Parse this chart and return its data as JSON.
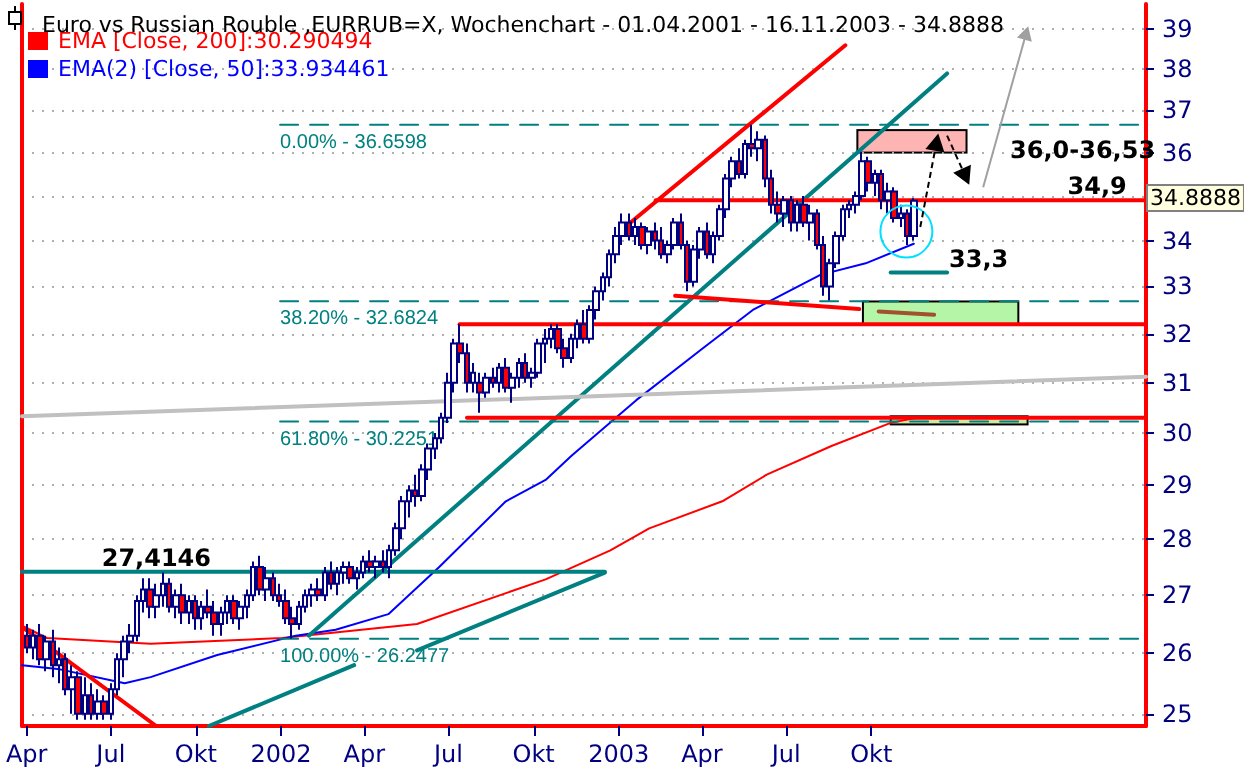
{
  "chart_data": {
    "type": "candlestick",
    "title": "Euro vs Russian Rouble ,EURRUB=X, Wochenchart - 01.04.2001 - 16.11.2003 - 34.8888",
    "log": true,
    "grid": "y",
    "legend": "top left",
    "marker": "none",
    "xlim": [
      "2001-03-27",
      "2004-07-24"
    ],
    "xticks": [
      {
        "value": "2001-04-01",
        "label": "Apr"
      },
      {
        "value": "2001-07-01",
        "label": "Jul"
      },
      {
        "value": "2001-10-01",
        "label": "Okt"
      },
      {
        "value": "2002-01-01",
        "label": "2002"
      },
      {
        "value": "2002-04-01",
        "label": "Apr"
      },
      {
        "value": "2002-07-01",
        "label": "Jul"
      },
      {
        "value": "2002-10-01",
        "label": "Okt"
      },
      {
        "value": "2003-01-01",
        "label": "2003"
      },
      {
        "value": "2003-04-01",
        "label": "Apr"
      },
      {
        "value": "2003-07-01",
        "label": "Jul"
      },
      {
        "value": "2003-10-01",
        "label": "Okt"
      }
    ],
    "ylim": [
      24.8,
      39.65
    ],
    "yticks": [
      25,
      26,
      27,
      28,
      29,
      30,
      31,
      32,
      33,
      34,
      {
        "value": 35,
        "label": null
      },
      36,
      37,
      38,
      39
    ],
    "annotations": [
      {
        "text": "27,4146",
        "x": "2001-06-19",
        "y": 27.4146
      },
      "36,0-36,53",
      {
        "text": "34,9",
        "x": "2004-04-28",
        "y": 34.9
      },
      {
        "text": "33,3",
        "x": "2003-12-22",
        "y": 33.3
      },
      "34.8888"
    ],
    "series": [
      {
        "type": "line",
        "name": "EMA [Close, 200]:30.290494",
        "color": "#ff0000",
        "x": [
          "2001-03-27",
          "2001-04-23",
          "2001-08-13",
          "2002-01-02",
          "2002-05-28",
          "2002-10-14",
          "2002-12-23",
          "2003-02-03",
          "2003-04-23",
          "2003-06-10",
          "2003-08-19",
          "2003-10-22",
          "2003-11-16"
        ],
        "values": [
          26.47,
          26.26,
          26.16,
          26.26,
          26.5,
          27.28,
          27.8,
          28.2,
          28.7,
          29.2,
          29.75,
          30.2,
          30.29
        ]
      },
      {
        "type": "line",
        "name": "EMA(2) [Close, 50]:33.934461",
        "color": "#0000ff",
        "x": [
          "2001-03-27",
          "2001-05-07",
          "2001-07-16",
          "2001-08-13",
          "2001-10-24",
          "2002-01-17",
          "2002-03-01",
          "2002-04-27",
          "2002-06-21",
          "2002-09-01",
          "2002-10-14",
          "2002-11-11",
          "2003-01-20",
          "2003-04-02",
          "2003-05-26",
          "2003-08-07",
          "2003-09-25",
          "2003-11-16"
        ],
        "values": [
          25.8,
          25.73,
          25.5,
          25.6,
          25.97,
          26.3,
          26.4,
          26.67,
          27.5,
          28.7,
          29.1,
          29.56,
          30.65,
          31.7,
          32.5,
          33.25,
          33.5,
          33.93
        ]
      },
      {
        "type": "line",
        "name": "0.00% - 36.6598",
        "color": "#008080",
        "line_style": "dashed",
        "x": [
          "2001-12-31",
          "2004-07-24"
        ],
        "values": [
          36.6598,
          36.6598
        ]
      },
      {
        "type": "line",
        "name": "38.20% - 32.6824",
        "color": "#008080",
        "line_style": "dashed",
        "x": [
          "2001-12-31",
          "2004-07-24"
        ],
        "values": [
          32.6824,
          32.6824
        ]
      },
      {
        "type": "line",
        "name": "61.80% - 30.2251",
        "color": "#008080",
        "line_style": "dashed",
        "x": [
          "2001-12-31",
          "2004-07-24"
        ],
        "values": [
          30.2251,
          30.2251
        ]
      },
      {
        "type": "line",
        "name": "100.00% - 26.2477",
        "color": "#008080",
        "line_style": "dashed",
        "x": [
          "2001-12-31",
          "2004-07-24"
        ],
        "values": [
          26.2477,
          26.2477
        ]
      },
      {
        "type": "line",
        "color": "#ff0000",
        "x": [
          "2001-03-27",
          "2001-08-19"
        ],
        "values": [
          26.45,
          24.8
        ]
      },
      {
        "type": "line",
        "color": "#008080",
        "x": [
          "2001-03-27",
          "2002-12-17"
        ],
        "values": [
          27.4146,
          27.4146
        ]
      },
      {
        "type": "line",
        "color": "#008080",
        "x": [
          "2002-05-28",
          "2002-12-17"
        ],
        "values": [
          26.05,
          27.4
        ]
      },
      {
        "type": "line",
        "color": "#008080",
        "x": [
          "2001-10-15",
          "2002-03-21"
        ],
        "values": [
          24.8,
          25.8
        ]
      },
      {
        "type": "line",
        "color": "#008080",
        "x": [
          "2002-01-31",
          "2003-12-22"
        ],
        "values": [
          26.3,
          37.9
        ]
      },
      {
        "type": "line",
        "color": "#c0c0c0",
        "x": [
          "2001-03-27",
          "2004-07-24"
        ],
        "values": [
          30.33,
          31.12
        ]
      },
      {
        "type": "line",
        "color": "#ff0000",
        "x": [
          "2003-01-08",
          "2003-09-03"
        ],
        "values": [
          34.3,
          38.6
        ]
      },
      {
        "type": "line",
        "color": "#ff0000",
        "x": [
          "2003-03-03",
          "2003-09-18"
        ],
        "values": [
          32.8,
          32.52
        ]
      },
      {
        "type": "line",
        "color": "#a0522d",
        "x": [
          "2003-10-09",
          "2003-12-08"
        ],
        "values": [
          32.47,
          32.4
        ]
      },
      {
        "type": "line",
        "color": "#ff0000",
        "x": [
          "2003-02-10",
          "2004-07-24"
        ],
        "values": [
          34.9,
          34.9
        ]
      },
      {
        "type": "line",
        "color": "#ff0000",
        "x": [
          "2002-07-13",
          "2004-07-24"
        ],
        "values": [
          32.2,
          32.2
        ]
      },
      {
        "type": "line",
        "color": "#ff0000",
        "x": [
          "2002-07-21",
          "2004-07-24"
        ],
        "values": [
          30.3,
          30.3
        ]
      },
      {
        "type": "line",
        "color": "#008080",
        "x": [
          "2003-10-22",
          "2003-12-22"
        ],
        "values": [
          33.3,
          33.3
        ]
      },
      {
        "color": "#000080",
        "x": [
          "2001-04-01",
          "2001-04-08",
          "2001-04-15",
          "2001-04-22",
          "2001-04-29",
          "2001-05-06",
          "2001-05-13",
          "2001-05-20",
          "2001-05-27",
          "2001-06-03",
          "2001-06-10",
          "2001-06-17",
          "2001-06-24",
          "2001-07-01",
          "2001-07-08",
          "2001-07-15",
          "2001-07-22",
          "2001-07-29",
          "2001-08-05",
          "2001-08-12",
          "2001-08-19",
          "2001-08-26",
          "2001-09-02",
          "2001-09-09",
          "2001-09-16",
          "2001-09-23",
          "2001-09-30",
          "2001-10-07",
          "2001-10-14",
          "2001-10-21",
          "2001-10-28",
          "2001-11-04",
          "2001-11-11",
          "2001-11-18",
          "2001-11-25",
          "2001-12-02",
          "2001-12-09",
          "2001-12-16",
          "2001-12-23",
          "2001-12-30",
          "2002-01-06",
          "2002-01-13",
          "2002-01-20",
          "2002-01-27",
          "2002-02-03",
          "2002-02-10",
          "2002-02-17",
          "2002-02-24",
          "2002-03-03",
          "2002-03-10",
          "2002-03-17",
          "2002-03-24",
          "2002-03-31",
          "2002-04-07",
          "2002-04-14",
          "2002-04-21",
          "2002-04-28",
          "2002-05-05",
          "2002-05-12",
          "2002-05-19",
          "2002-05-26",
          "2002-06-02",
          "2002-06-09",
          "2002-06-16",
          "2002-06-23",
          "2002-06-30",
          "2002-07-07",
          "2002-07-14",
          "2002-07-21",
          "2002-07-28",
          "2002-08-04",
          "2002-08-11",
          "2002-08-18",
          "2002-08-25",
          "2002-09-01",
          "2002-09-08",
          "2002-09-15",
          "2002-09-22",
          "2002-09-29",
          "2002-10-06",
          "2002-10-13",
          "2002-10-20",
          "2002-10-27",
          "2002-11-03",
          "2002-11-10",
          "2002-11-17",
          "2002-11-24",
          "2002-12-01",
          "2002-12-08",
          "2002-12-15",
          "2002-12-22",
          "2002-12-29",
          "2003-01-05",
          "2003-01-12",
          "2003-01-19",
          "2003-01-26",
          "2003-02-02",
          "2003-02-09",
          "2003-02-16",
          "2003-02-23",
          "2003-03-02",
          "2003-03-09",
          "2003-03-16",
          "2003-03-23",
          "2003-03-30",
          "2003-04-06",
          "2003-04-13",
          "2003-04-20",
          "2003-04-27",
          "2003-05-04",
          "2003-05-11",
          "2003-05-18",
          "2003-05-25",
          "2003-06-01",
          "2003-06-08",
          "2003-06-15",
          "2003-06-22",
          "2003-06-29",
          "2003-07-06",
          "2003-07-13",
          "2003-07-20",
          "2003-07-27",
          "2003-08-03",
          "2003-08-10",
          "2003-08-17",
          "2003-08-24",
          "2003-08-31",
          "2003-09-07",
          "2003-09-14",
          "2003-09-21",
          "2003-09-28",
          "2003-10-05",
          "2003-10-12",
          "2003-10-19",
          "2003-10-26",
          "2003-11-02",
          "2003-11-09",
          "2003-11-16"
        ],
        "ohlc": [
          [
            26.3,
            26.5,
            26.0,
            26.1
          ],
          [
            26.1,
            26.4,
            25.9,
            26.3
          ],
          [
            26.3,
            26.5,
            25.8,
            25.9
          ],
          [
            25.9,
            26.3,
            25.7,
            26.2
          ],
          [
            26.2,
            26.4,
            25.6,
            25.8
          ],
          [
            25.8,
            26.1,
            25.5,
            25.9
          ],
          [
            25.9,
            26.0,
            25.3,
            25.4
          ],
          [
            25.4,
            25.8,
            25.0,
            25.6
          ],
          [
            25.6,
            25.7,
            24.9,
            25.0
          ],
          [
            25.0,
            25.6,
            24.9,
            25.3
          ],
          [
            25.3,
            25.5,
            24.9,
            25.0
          ],
          [
            25.0,
            25.4,
            24.9,
            25.2
          ],
          [
            25.2,
            25.3,
            24.9,
            25.0
          ],
          [
            25.0,
            25.5,
            24.9,
            25.4
          ],
          [
            25.4,
            26.0,
            25.3,
            25.9
          ],
          [
            25.9,
            26.3,
            25.6,
            26.2
          ],
          [
            26.2,
            26.5,
            26.0,
            26.3
          ],
          [
            26.3,
            27.0,
            26.2,
            26.9
          ],
          [
            26.9,
            27.3,
            26.7,
            27.1
          ],
          [
            27.1,
            27.3,
            26.6,
            26.8
          ],
          [
            26.8,
            27.2,
            26.6,
            27.0
          ],
          [
            27.0,
            27.4,
            26.8,
            27.2
          ],
          [
            27.2,
            27.3,
            26.7,
            26.8
          ],
          [
            26.8,
            27.1,
            26.6,
            27.0
          ],
          [
            27.0,
            27.2,
            26.5,
            26.7
          ],
          [
            26.7,
            27.0,
            26.5,
            26.9
          ],
          [
            26.9,
            27.0,
            26.4,
            26.6
          ],
          [
            26.6,
            26.9,
            26.4,
            26.8
          ],
          [
            26.8,
            27.1,
            26.6,
            26.7
          ],
          [
            26.7,
            26.9,
            26.3,
            26.5
          ],
          [
            26.5,
            26.8,
            26.3,
            26.7
          ],
          [
            26.7,
            27.0,
            26.5,
            26.9
          ],
          [
            26.9,
            27.0,
            26.5,
            26.6
          ],
          [
            26.6,
            26.9,
            26.4,
            26.8
          ],
          [
            26.8,
            27.1,
            26.6,
            27.0
          ],
          [
            27.0,
            27.6,
            26.9,
            27.5
          ],
          [
            27.5,
            27.7,
            27.0,
            27.1
          ],
          [
            27.1,
            27.5,
            26.9,
            27.3
          ],
          [
            27.3,
            27.4,
            26.9,
            27.0
          ],
          [
            27.0,
            27.2,
            26.8,
            26.9
          ],
          [
            26.9,
            27.1,
            26.5,
            26.6
          ],
          [
            26.6,
            26.8,
            26.25,
            26.5
          ],
          [
            26.5,
            26.9,
            26.4,
            26.8
          ],
          [
            26.8,
            27.1,
            26.7,
            27.0
          ],
          [
            27.0,
            27.2,
            26.8,
            27.1
          ],
          [
            27.1,
            27.3,
            26.9,
            27.0
          ],
          [
            27.0,
            27.5,
            26.9,
            27.4
          ],
          [
            27.4,
            27.6,
            27.1,
            27.2
          ],
          [
            27.2,
            27.5,
            27.0,
            27.4
          ],
          [
            27.4,
            27.6,
            27.2,
            27.5
          ],
          [
            27.5,
            27.6,
            27.2,
            27.3
          ],
          [
            27.3,
            27.5,
            27.1,
            27.4
          ],
          [
            27.4,
            27.7,
            27.3,
            27.6
          ],
          [
            27.6,
            27.8,
            27.4,
            27.5
          ],
          [
            27.5,
            27.7,
            27.3,
            27.6
          ],
          [
            27.6,
            27.8,
            27.4,
            27.5
          ],
          [
            27.5,
            27.9,
            27.3,
            27.8
          ],
          [
            27.8,
            28.3,
            27.7,
            28.2
          ],
          [
            28.2,
            28.8,
            28.0,
            28.7
          ],
          [
            28.7,
            29.0,
            28.4,
            28.9
          ],
          [
            28.9,
            29.2,
            28.6,
            28.8
          ],
          [
            28.8,
            29.4,
            28.7,
            29.3
          ],
          [
            29.3,
            29.8,
            29.1,
            29.7
          ],
          [
            29.7,
            30.0,
            29.5,
            29.9
          ],
          [
            29.9,
            30.4,
            29.8,
            30.3
          ],
          [
            30.3,
            31.2,
            30.2,
            31.0
          ],
          [
            31.0,
            31.9,
            30.8,
            31.8
          ],
          [
            31.8,
            32.2,
            31.4,
            31.6
          ],
          [
            31.6,
            31.8,
            30.8,
            31.0
          ],
          [
            31.0,
            31.4,
            30.8,
            31.2
          ],
          [
            31.0,
            31.2,
            30.4,
            30.8
          ],
          [
            30.8,
            31.2,
            30.7,
            31.1
          ],
          [
            31.1,
            31.3,
            30.9,
            31.0
          ],
          [
            31.0,
            31.4,
            30.8,
            31.3
          ],
          [
            31.3,
            31.5,
            30.8,
            30.9
          ],
          [
            30.9,
            31.2,
            30.6,
            31.1
          ],
          [
            31.1,
            31.5,
            30.9,
            31.4
          ],
          [
            31.4,
            31.6,
            31.0,
            31.1
          ],
          [
            31.1,
            31.3,
            30.9,
            31.2
          ],
          [
            31.2,
            31.9,
            31.1,
            31.8
          ],
          [
            31.8,
            32.1,
            31.4,
            31.9
          ],
          [
            31.9,
            32.2,
            31.7,
            32.1
          ],
          [
            32.1,
            32.2,
            31.6,
            31.7
          ],
          [
            31.7,
            31.9,
            31.3,
            31.5
          ],
          [
            31.5,
            32.0,
            31.4,
            31.9
          ],
          [
            31.9,
            32.3,
            31.7,
            32.2
          ],
          [
            32.2,
            32.5,
            31.8,
            31.9
          ],
          [
            31.9,
            32.6,
            31.8,
            32.5
          ],
          [
            32.5,
            33.0,
            32.3,
            32.9
          ],
          [
            32.9,
            33.3,
            32.7,
            33.2
          ],
          [
            33.2,
            33.8,
            33.0,
            33.7
          ],
          [
            33.7,
            34.3,
            33.5,
            34.1
          ],
          [
            34.1,
            34.6,
            33.9,
            34.4
          ],
          [
            34.4,
            34.6,
            34.0,
            34.1
          ],
          [
            34.1,
            34.5,
            33.9,
            34.3
          ],
          [
            34.3,
            34.4,
            33.8,
            33.9
          ],
          [
            33.9,
            34.3,
            33.7,
            34.2
          ],
          [
            34.2,
            34.4,
            33.8,
            34.0
          ],
          [
            34.0,
            34.3,
            33.6,
            33.7
          ],
          [
            33.7,
            34.0,
            33.5,
            33.9
          ],
          [
            33.9,
            34.5,
            33.8,
            34.4
          ],
          [
            34.4,
            34.6,
            33.8,
            33.9
          ],
          [
            33.9,
            34.0,
            32.9,
            33.1
          ],
          [
            33.1,
            33.9,
            33.0,
            33.8
          ],
          [
            33.8,
            34.3,
            33.6,
            34.2
          ],
          [
            34.2,
            34.4,
            33.6,
            33.7
          ],
          [
            33.7,
            34.2,
            33.5,
            34.1
          ],
          [
            34.1,
            34.8,
            34.0,
            34.7
          ],
          [
            34.7,
            35.5,
            34.5,
            35.4
          ],
          [
            35.4,
            35.9,
            35.2,
            35.8
          ],
          [
            35.8,
            36.1,
            35.4,
            35.5
          ],
          [
            35.5,
            36.3,
            35.4,
            36.2
          ],
          [
            36.2,
            36.66,
            35.9,
            36.1
          ],
          [
            36.1,
            36.5,
            35.8,
            36.3
          ],
          [
            36.3,
            36.4,
            35.2,
            35.4
          ],
          [
            35.4,
            35.6,
            34.6,
            34.8
          ],
          [
            34.8,
            35.1,
            34.4,
            34.6
          ],
          [
            34.6,
            35.0,
            34.3,
            34.9
          ],
          [
            34.9,
            35.0,
            34.2,
            34.4
          ],
          [
            34.4,
            34.9,
            34.2,
            34.8
          ],
          [
            34.8,
            35.0,
            34.3,
            34.4
          ],
          [
            34.4,
            34.8,
            34.0,
            34.6
          ],
          [
            34.6,
            34.7,
            33.8,
            33.9
          ],
          [
            33.9,
            34.1,
            32.8,
            33.0
          ],
          [
            33.0,
            33.6,
            32.7,
            33.5
          ],
          [
            33.5,
            34.2,
            33.4,
            34.1
          ],
          [
            34.1,
            34.8,
            34.0,
            34.7
          ],
          [
            34.7,
            34.9,
            34.5,
            34.8
          ],
          [
            34.8,
            35.1,
            34.6,
            35.0
          ],
          [
            35.0,
            36.0,
            34.9,
            35.8
          ],
          [
            35.8,
            35.9,
            35.1,
            35.3
          ],
          [
            35.3,
            35.6,
            35.0,
            35.5
          ],
          [
            35.5,
            35.6,
            34.7,
            34.9
          ],
          [
            34.9,
            35.3,
            34.6,
            35.1
          ],
          [
            35.1,
            35.2,
            34.4,
            34.5
          ],
          [
            34.5,
            34.8,
            34.3,
            34.6
          ],
          [
            34.6,
            34.7,
            33.9,
            34.1
          ],
          [
            34.1,
            34.95,
            34.0,
            34.8888
          ]
        ],
        "colors": [
          "#ff0000",
          "#ffffff",
          "#ff0000",
          "#ffffff",
          "#ff0000",
          "#ffffff",
          "#ff0000",
          "#ffffff",
          "#ff0000",
          "#ffffff",
          "#ff0000",
          "#ffffff",
          "#ff0000",
          "#ffffff",
          "#ffffff",
          "#ffffff",
          "#ffffff",
          "#ffffff",
          "#ffffff",
          "#ff0000",
          "#ffffff",
          "#ffffff",
          "#ff0000",
          "#ffffff",
          "#ff0000",
          "#ffffff",
          "#ff0000",
          "#ffffff",
          "#ff0000",
          "#ff0000",
          "#ffffff",
          "#ffffff",
          "#ff0000",
          "#ffffff",
          "#ffffff",
          "#ffffff",
          "#ff0000",
          "#ffffff",
          "#ff0000",
          "#ff0000",
          "#ff0000",
          "#ff0000",
          "#ffffff",
          "#ffffff",
          "#ffffff",
          "#ff0000",
          "#ffffff",
          "#ff0000",
          "#ffffff",
          "#ffffff",
          "#ff0000",
          "#ffffff",
          "#ffffff",
          "#ff0000",
          "#ffffff",
          "#ff0000",
          "#ffffff",
          "#ffffff",
          "#ffffff",
          "#ffffff",
          "#ff0000",
          "#ffffff",
          "#ffffff",
          "#ffffff",
          "#ffffff",
          "#ffffff",
          "#ffffff",
          "#ff0000",
          "#ff0000",
          "#ffffff",
          "#ff0000",
          "#ffffff",
          "#ff0000",
          "#ffffff",
          "#ff0000",
          "#ffffff",
          "#ffffff",
          "#ff0000",
          "#ffffff",
          "#ffffff",
          "#ffffff",
          "#ffffff",
          "#ff0000",
          "#ff0000",
          "#ffffff",
          "#ffffff",
          "#ff0000",
          "#ffffff",
          "#ffffff",
          "#ffffff",
          "#ffffff",
          "#ffffff",
          "#ffffff",
          "#ff0000",
          "#ffffff",
          "#ff0000",
          "#ffffff",
          "#ff0000",
          "#ff0000",
          "#ffffff",
          "#ffffff",
          "#ff0000",
          "#ff0000",
          "#ffffff",
          "#ffffff",
          "#ff0000",
          "#ffffff",
          "#ffffff",
          "#ffffff",
          "#ffffff",
          "#ff0000",
          "#ffffff",
          "#ff0000",
          "#ffffff",
          "#ff0000",
          "#ff0000",
          "#ff0000",
          "#ffffff",
          "#ff0000",
          "#ffffff",
          "#ff0000",
          "#ffffff",
          "#ff0000",
          "#ff0000",
          "#ffffff",
          "#ffffff",
          "#ffffff",
          "#ffffff",
          "#ffffff",
          "#ffffff",
          "#ff0000",
          "#ffffff",
          "#ff0000",
          "#ffffff",
          "#ff0000",
          "#ffffff",
          "#ff0000",
          "#ffffff"
        ]
      }
    ]
  }
}
